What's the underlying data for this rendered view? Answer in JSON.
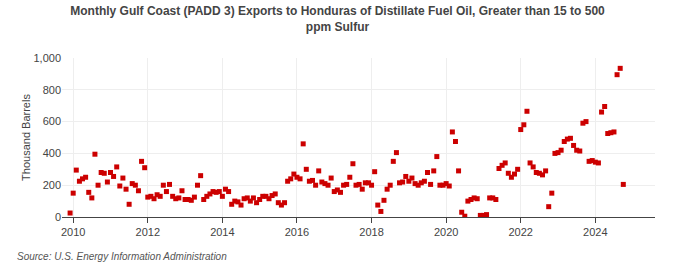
{
  "chart_data": {
    "type": "scatter",
    "title": "Monthly Gulf Coast (PADD 3) Exports to Honduras of Distillate Fuel Oil, Greater than 15 to 500\nppm Sulfur",
    "ylabel": "Thousand Barrels",
    "source": "Source: U.S. Energy Information Administration",
    "color": "#cc0000",
    "marker": "square",
    "grid": true,
    "xlim": [
      2009.7,
      2025.6
    ],
    "xticks": [
      2010,
      2012,
      2014,
      2016,
      2018,
      2020,
      2022,
      2024
    ],
    "ylim": [
      0,
      1000
    ],
    "yticks": [
      0,
      200,
      400,
      600,
      800,
      {
        "value": 1000,
        "label": "1,000"
      }
    ],
    "x": [
      2009.917,
      2010.0,
      2010.083,
      2010.167,
      2010.25,
      2010.333,
      2010.417,
      2010.5,
      2010.583,
      2010.667,
      2010.75,
      2010.833,
      2010.917,
      2011.0,
      2011.083,
      2011.167,
      2011.25,
      2011.333,
      2011.417,
      2011.5,
      2011.583,
      2011.667,
      2011.75,
      2011.833,
      2011.917,
      2012.0,
      2012.083,
      2012.167,
      2012.25,
      2012.333,
      2012.417,
      2012.5,
      2012.583,
      2012.667,
      2012.75,
      2012.833,
      2012.917,
      2013.0,
      2013.083,
      2013.167,
      2013.25,
      2013.333,
      2013.417,
      2013.5,
      2013.583,
      2013.667,
      2013.75,
      2013.833,
      2013.917,
      2014.0,
      2014.083,
      2014.167,
      2014.25,
      2014.333,
      2014.417,
      2014.5,
      2014.583,
      2014.667,
      2014.75,
      2014.833,
      2014.917,
      2015.0,
      2015.083,
      2015.167,
      2015.25,
      2015.333,
      2015.417,
      2015.5,
      2015.583,
      2015.667,
      2015.75,
      2015.833,
      2015.917,
      2016.0,
      2016.083,
      2016.167,
      2016.25,
      2016.333,
      2016.417,
      2016.5,
      2016.583,
      2016.667,
      2016.75,
      2016.833,
      2016.917,
      2017.0,
      2017.083,
      2017.167,
      2017.25,
      2017.333,
      2017.417,
      2017.5,
      2017.583,
      2017.667,
      2017.75,
      2017.833,
      2017.917,
      2018.0,
      2018.083,
      2018.167,
      2018.25,
      2018.333,
      2018.417,
      2018.5,
      2018.583,
      2018.667,
      2018.75,
      2018.833,
      2018.917,
      2019.0,
      2019.083,
      2019.167,
      2019.25,
      2019.333,
      2019.417,
      2019.5,
      2019.583,
      2019.667,
      2019.75,
      2019.833,
      2019.917,
      2020.0,
      2020.083,
      2020.167,
      2020.25,
      2020.333,
      2020.417,
      2020.5,
      2020.583,
      2020.667,
      2020.75,
      2020.833,
      2020.917,
      2021.0,
      2021.083,
      2021.167,
      2021.25,
      2021.333,
      2021.417,
      2021.5,
      2021.583,
      2021.667,
      2021.75,
      2021.833,
      2021.917,
      2022.0,
      2022.083,
      2022.167,
      2022.25,
      2022.333,
      2022.417,
      2022.5,
      2022.583,
      2022.667,
      2022.75,
      2022.833,
      2022.917,
      2023.0,
      2023.083,
      2023.167,
      2023.25,
      2023.333,
      2023.417,
      2023.5,
      2023.583,
      2023.667,
      2023.75,
      2023.833,
      2023.917,
      2024.0,
      2024.083,
      2024.167,
      2024.25,
      2024.333,
      2024.417,
      2024.5,
      2024.583,
      2024.667,
      2024.75
    ],
    "values": [
      25,
      150,
      295,
      225,
      240,
      250,
      155,
      120,
      395,
      200,
      280,
      275,
      220,
      280,
      255,
      315,
      195,
      245,
      175,
      80,
      210,
      200,
      165,
      350,
      310,
      125,
      130,
      115,
      140,
      130,
      200,
      160,
      205,
      130,
      115,
      120,
      165,
      110,
      110,
      105,
      125,
      200,
      260,
      110,
      130,
      145,
      160,
      155,
      160,
      130,
      175,
      160,
      80,
      100,
      95,
      75,
      115,
      120,
      100,
      120,
      90,
      110,
      130,
      130,
      115,
      135,
      145,
      90,
      75,
      90,
      225,
      240,
      270,
      250,
      240,
      460,
      300,
      225,
      230,
      200,
      290,
      220,
      210,
      200,
      245,
      160,
      170,
      155,
      200,
      205,
      250,
      335,
      200,
      205,
      175,
      215,
      215,
      200,
      285,
      75,
      35,
      105,
      175,
      200,
      350,
      405,
      215,
      220,
      255,
      225,
      245,
      210,
      200,
      215,
      225,
      280,
      205,
      290,
      380,
      200,
      200,
      210,
      195,
      535,
      475,
      290,
      30,
      5,
      100,
      110,
      120,
      115,
      10,
      10,
      15,
      120,
      120,
      110,
      305,
      325,
      340,
      275,
      250,
      270,
      300,
      550,
      580,
      665,
      340,
      315,
      280,
      275,
      265,
      290,
      65,
      150,
      400,
      405,
      420,
      475,
      490,
      495,
      450,
      420,
      415,
      590,
      600,
      350,
      355,
      345,
      340,
      660,
      695,
      525,
      530,
      535,
      895,
      935,
      205
    ]
  }
}
